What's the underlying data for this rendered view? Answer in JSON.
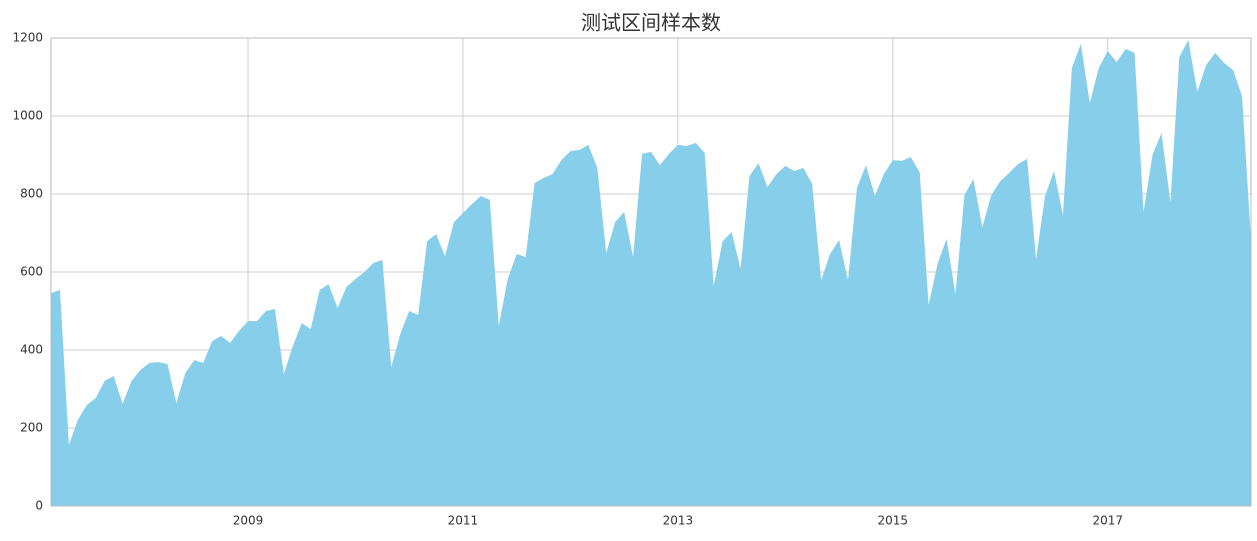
{
  "chart_data": {
    "type": "area",
    "title": "测试区间样本数",
    "color": "#87ceeb",
    "grid": true,
    "x": [
      "2007-03",
      "2007-04",
      "2007-05",
      "2007-06",
      "2007-07",
      "2007-08",
      "2007-09",
      "2007-10",
      "2007-11",
      "2007-12",
      "2008-01",
      "2008-02",
      "2008-03",
      "2008-04",
      "2008-05",
      "2008-06",
      "2008-07",
      "2008-08",
      "2008-09",
      "2008-10",
      "2008-11",
      "2008-12",
      "2009-01",
      "2009-02",
      "2009-03",
      "2009-04",
      "2009-05",
      "2009-06",
      "2009-07",
      "2009-08",
      "2009-09",
      "2009-10",
      "2009-11",
      "2009-12",
      "2010-01",
      "2010-02",
      "2010-03",
      "2010-04",
      "2010-05",
      "2010-06",
      "2010-07",
      "2010-08",
      "2010-09",
      "2010-10",
      "2010-11",
      "2010-12",
      "2011-01",
      "2011-02",
      "2011-03",
      "2011-04",
      "2011-05",
      "2011-06",
      "2011-07",
      "2011-08",
      "2011-09",
      "2011-10",
      "2011-11",
      "2011-12",
      "2012-01",
      "2012-02",
      "2012-03",
      "2012-04",
      "2012-05",
      "2012-06",
      "2012-07",
      "2012-08",
      "2012-09",
      "2012-10",
      "2012-11",
      "2012-12",
      "2013-01",
      "2013-02",
      "2013-03",
      "2013-04",
      "2013-05",
      "2013-06",
      "2013-07",
      "2013-08",
      "2013-09",
      "2013-10",
      "2013-11",
      "2013-12",
      "2014-01",
      "2014-02",
      "2014-03",
      "2014-04",
      "2014-05",
      "2014-06",
      "2014-07",
      "2014-08",
      "2014-09",
      "2014-10",
      "2014-11",
      "2014-12",
      "2015-01",
      "2015-02",
      "2015-03",
      "2015-04",
      "2015-05",
      "2015-06",
      "2015-07",
      "2015-08",
      "2015-09",
      "2015-10",
      "2015-11",
      "2015-12",
      "2016-01",
      "2016-02",
      "2016-03",
      "2016-04",
      "2016-05",
      "2016-06",
      "2016-07",
      "2016-08",
      "2016-09",
      "2016-10",
      "2016-11",
      "2016-12",
      "2017-01",
      "2017-02",
      "2017-03",
      "2017-04",
      "2017-05",
      "2017-06",
      "2017-07",
      "2017-08",
      "2017-09",
      "2017-10",
      "2017-11",
      "2017-12",
      "2018-01",
      "2018-02",
      "2018-03",
      "2018-04",
      "2018-05"
    ],
    "values": [
      546,
      554,
      156,
      221,
      259,
      277,
      321,
      333,
      262,
      321,
      349,
      367,
      369,
      364,
      264,
      341,
      374,
      367,
      423,
      436,
      418,
      449,
      474,
      474,
      500,
      505,
      338,
      410,
      469,
      454,
      554,
      569,
      508,
      562,
      582,
      600,
      623,
      631,
      356,
      441,
      500,
      490,
      679,
      697,
      641,
      728,
      751,
      774,
      795,
      785,
      462,
      582,
      646,
      638,
      828,
      841,
      851,
      887,
      910,
      913,
      926,
      867,
      649,
      728,
      754,
      638,
      903,
      908,
      874,
      903,
      926,
      923,
      931,
      905,
      564,
      679,
      703,
      608,
      846,
      879,
      818,
      851,
      872,
      859,
      867,
      826,
      579,
      646,
      682,
      579,
      815,
      874,
      795,
      851,
      887,
      885,
      895,
      856,
      515,
      621,
      685,
      544,
      797,
      838,
      715,
      797,
      833,
      854,
      877,
      890,
      633,
      795,
      859,
      746,
      1123,
      1185,
      1033,
      1123,
      1167,
      1138,
      1172,
      1162,
      754,
      900,
      956,
      779,
      1151,
      1195,
      1062,
      1131,
      1162,
      1136,
      1118,
      1051,
      682
    ],
    "xlim": [
      "2007-03",
      "2018-05"
    ],
    "xticks": [
      {
        "value": "2009-01",
        "label": "2009"
      },
      {
        "value": "2011-01",
        "label": "2011"
      },
      {
        "value": "2013-01",
        "label": "2013"
      },
      {
        "value": "2015-01",
        "label": "2015"
      },
      {
        "value": "2017-01",
        "label": "2017"
      }
    ],
    "ylim": [
      0,
      1200
    ],
    "yticks": [
      0,
      200,
      400,
      600,
      800,
      1000,
      1200
    ]
  }
}
